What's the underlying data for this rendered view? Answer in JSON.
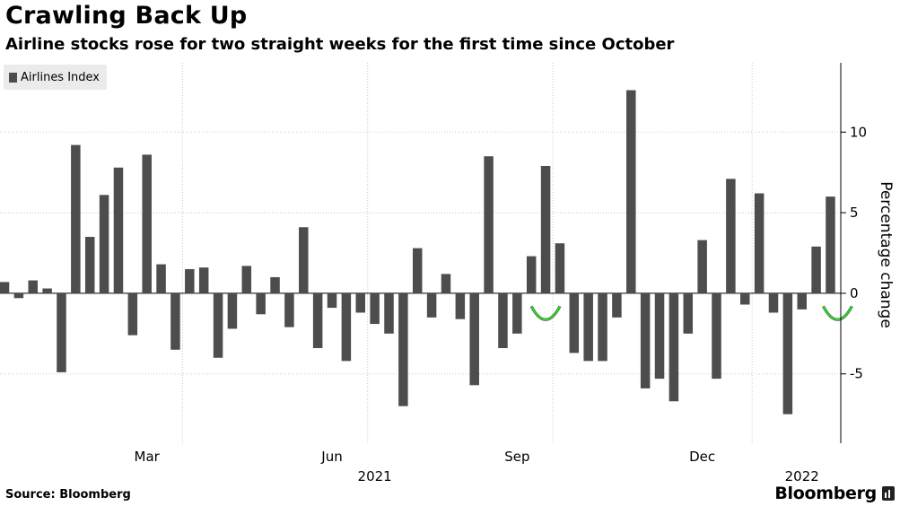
{
  "chart_data": {
    "type": "bar",
    "title": "Crawling Back Up",
    "subtitle": "Airline stocks rose for two straight weeks for the first time since October",
    "legend": [
      "Airlines Index"
    ],
    "ylabel": "Percentage change",
    "ylim": [
      -9.3,
      14.3
    ],
    "yticks": [
      10,
      5,
      0,
      -5
    ],
    "ytick_labels": [
      "10",
      "5",
      "0",
      "-5"
    ],
    "x_month_labels": [
      {
        "label": "Mar",
        "week": 10
      },
      {
        "label": "Jun",
        "week": 23
      },
      {
        "label": "Sep",
        "week": 36
      },
      {
        "label": "Dec",
        "week": 49
      }
    ],
    "x_year_labels": [
      {
        "label": "2021",
        "week": 26
      },
      {
        "label": "2022",
        "week": 56
      }
    ],
    "gridline_weeks": [
      12.5,
      25.5,
      38.5,
      52.5
    ],
    "series": [
      {
        "name": "Airlines Index",
        "color": "#4d4d4d",
        "values": [
          0.7,
          -0.3,
          0.8,
          0.3,
          -4.9,
          9.2,
          3.5,
          6.1,
          7.8,
          -2.6,
          8.6,
          1.8,
          -3.5,
          1.5,
          1.6,
          -4.0,
          -2.2,
          1.7,
          -1.3,
          1.0,
          -2.1,
          4.1,
          -3.4,
          -0.9,
          -4.2,
          -1.2,
          -1.9,
          -2.5,
          -7.0,
          2.8,
          -1.5,
          1.2,
          -1.6,
          -5.7,
          8.5,
          -3.4,
          -2.5,
          2.3,
          7.9,
          3.1,
          -3.7,
          -4.2,
          -4.2,
          -1.5,
          12.6,
          -5.9,
          -5.3,
          -6.7,
          -2.5,
          3.3,
          -5.3,
          7.1,
          -0.7,
          6.2,
          -1.2,
          -7.5,
          -1.0,
          2.9,
          6.0
        ]
      }
    ],
    "highlights": [
      {
        "week": 38,
        "color": "#2de022"
      },
      {
        "week": 58.5,
        "color": "#2de022"
      }
    ]
  },
  "source": "Source: Bloomberg",
  "brand": "Bloomberg"
}
